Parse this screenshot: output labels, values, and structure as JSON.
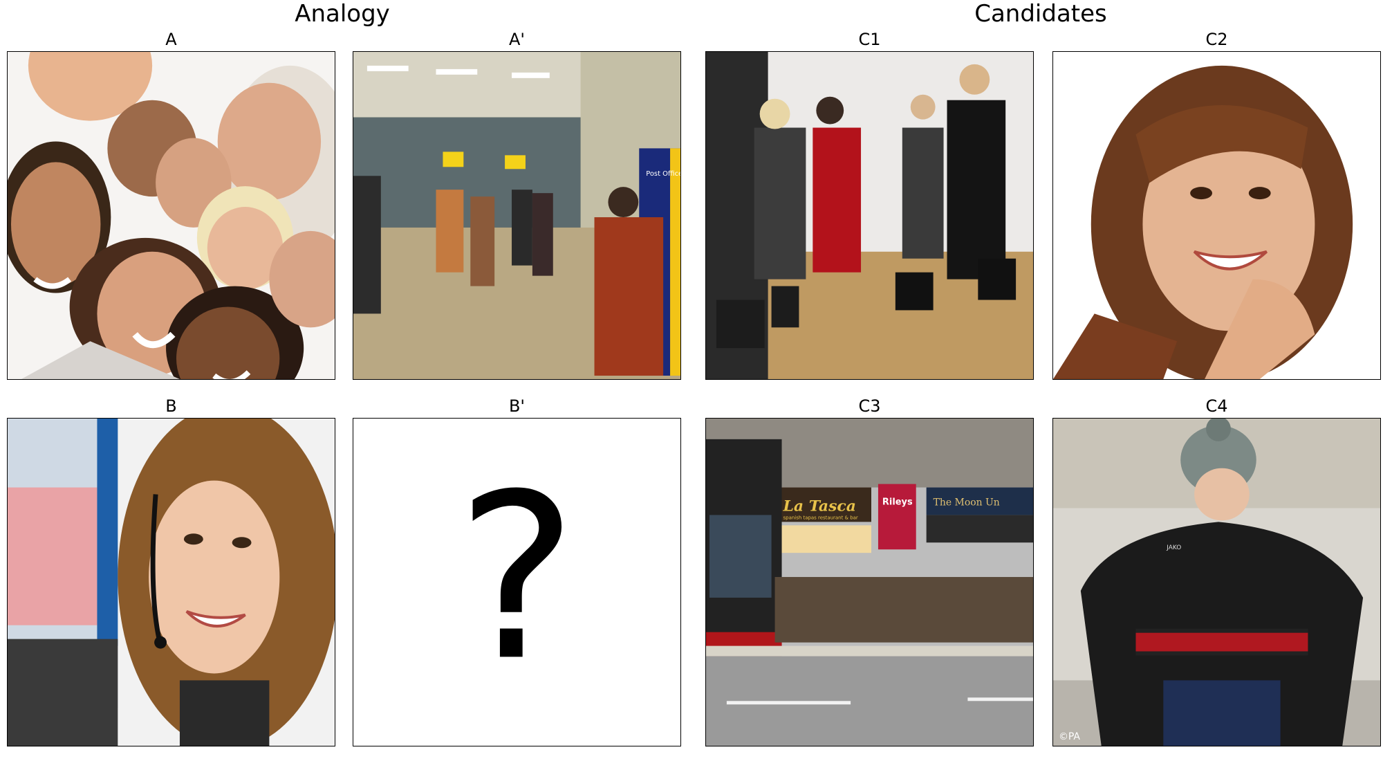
{
  "headings": {
    "analogy": "Analogy",
    "candidates": "Candidates"
  },
  "panels": {
    "a": {
      "label": "A"
    },
    "a_prime": {
      "label": "A'"
    },
    "b": {
      "label": "B"
    },
    "b_prime": {
      "label": "B'",
      "placeholder": "?"
    },
    "c1": {
      "label": "C1"
    },
    "c2": {
      "label": "C2"
    },
    "c3": {
      "label": "C3"
    },
    "c4": {
      "label": "C4"
    }
  },
  "image_text": {
    "a_prime_booth": "Post Office",
    "c3_restaurant": "La Tasca",
    "c3_restaurant_sub": "spanish tapas restaurant & bar",
    "c3_shop": "Rileys",
    "c3_pub": "The Moon Un",
    "c4_credit": "©PA",
    "c4_jacket": "JAKO"
  },
  "colors": {
    "border": "#000000",
    "background": "#ffffff"
  }
}
